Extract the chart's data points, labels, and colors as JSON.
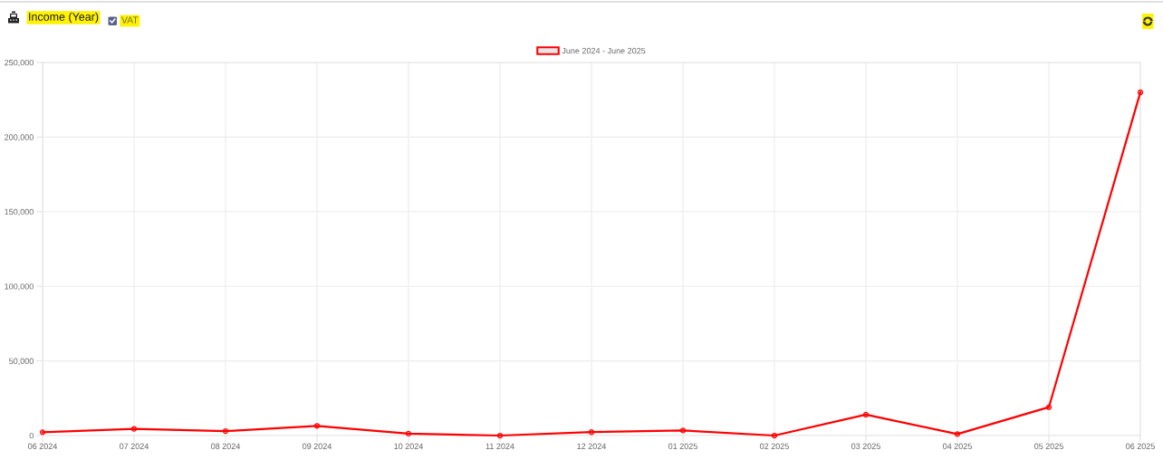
{
  "chart_data": {
    "type": "line",
    "title": "Income (Year)",
    "annotations": [
      "VAT"
    ],
    "categories": [
      "06 2024",
      "07 2024",
      "08 2024",
      "09 2024",
      "10 2024",
      "11 2024",
      "12 2024",
      "01 2025",
      "02 2025",
      "03 2025",
      "04 2025",
      "05 2025",
      "06 2025"
    ],
    "series": [
      {
        "name": "June 2024 - June 2025",
        "color": "#ff0000",
        "values": [
          2200,
          4500,
          3000,
          6500,
          1300,
          0,
          2300,
          3400,
          0,
          14000,
          1000,
          19000,
          230000
        ]
      }
    ],
    "ylim": [
      0,
      250000
    ],
    "yticks": [
      0,
      {
        "value": 50000,
        "label": "50,000"
      },
      {
        "value": 100000,
        "label": "100,000"
      },
      {
        "value": 150000,
        "label": "150,000"
      },
      {
        "value": 200000,
        "label": "200,000"
      },
      {
        "value": 250000,
        "label": "250,000"
      }
    ],
    "grid": true,
    "legend": "top",
    "marker": "circle",
    "line_style": "solid"
  }
}
